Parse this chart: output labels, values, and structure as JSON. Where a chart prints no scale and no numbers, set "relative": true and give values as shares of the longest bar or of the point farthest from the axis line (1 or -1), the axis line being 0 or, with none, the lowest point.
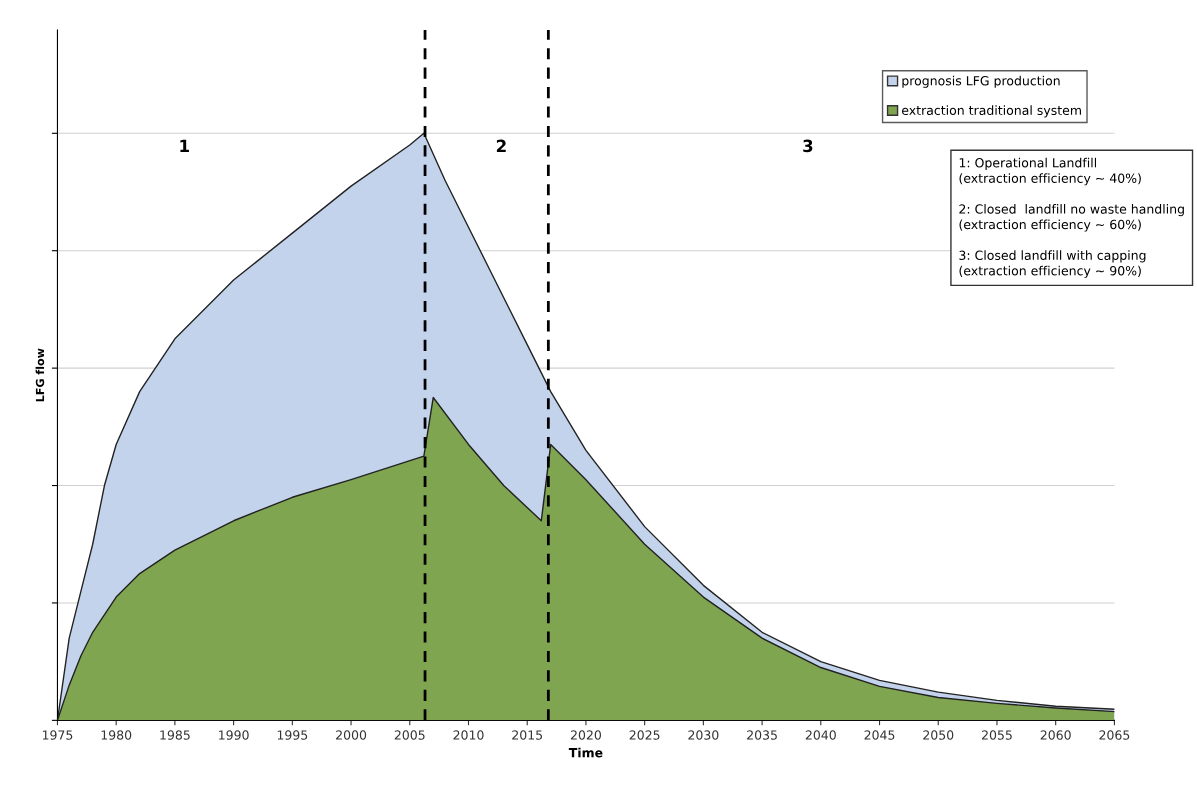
{
  "chart_data": {
    "type": "area",
    "xlabel": "Time",
    "ylabel": "LFG flow",
    "relative": true,
    "xlim": [
      1975,
      2065
    ],
    "xticks": [
      1975,
      1980,
      1985,
      1990,
      1995,
      2000,
      2005,
      2010,
      2015,
      2020,
      2025,
      2030,
      2035,
      2040,
      2045,
      2050,
      2055,
      2060,
      2065
    ],
    "grid": "y",
    "legend": "top right",
    "series": [
      {
        "name": "prognosis LFG production",
        "color": "#c3d3ec",
        "x": [
          1975,
          1976,
          1977,
          1978,
          1979,
          1980,
          1982,
          1985,
          1990,
          1995,
          2000,
          2005,
          2006.2,
          2008,
          2010,
          2012,
          2015,
          2017,
          2020,
          2025,
          2030,
          2035,
          2040,
          2045,
          2050,
          2055,
          2060,
          2065
        ],
        "values": [
          0,
          0.14,
          0.22,
          0.3,
          0.4,
          0.47,
          0.56,
          0.65,
          0.75,
          0.83,
          0.91,
          0.98,
          1.0,
          0.92,
          0.84,
          0.76,
          0.64,
          0.56,
          0.46,
          0.33,
          0.23,
          0.15,
          0.1,
          0.068,
          0.048,
          0.034,
          0.024,
          0.019
        ]
      },
      {
        "name": "extraction traditional system",
        "color": "#7fa550",
        "x": [
          1975,
          1976,
          1977,
          1978,
          1980,
          1982,
          1985,
          1990,
          1995,
          2000,
          2006.2,
          2007,
          2010,
          2013,
          2016.2,
          2017,
          2020,
          2025,
          2030,
          2035,
          2040,
          2045,
          2050,
          2055,
          2060,
          2065
        ],
        "values": [
          0,
          0.06,
          0.11,
          0.15,
          0.21,
          0.25,
          0.29,
          0.34,
          0.38,
          0.41,
          0.45,
          0.55,
          0.47,
          0.4,
          0.34,
          0.47,
          0.41,
          0.3,
          0.21,
          0.14,
          0.09,
          0.058,
          0.039,
          0.029,
          0.021,
          0.015
        ]
      }
    ],
    "ref_lines": [
      {
        "axis": "x",
        "value": 2006.3,
        "color": "#000000",
        "line_style": "dashed"
      },
      {
        "axis": "x",
        "value": 2016.8,
        "color": "#000000",
        "line_style": "dashed"
      }
    ],
    "annotations": [
      "1",
      "2",
      "3",
      "1: Operational Landfill\n(extraction efficiency ~ 40%)\n\n2: Closed  landfill no waste handling\n(extraction efficiency ~ 60%)\n\n3: Closed landfill with capping\n(extraction efficiency ~ 90%)"
    ]
  }
}
